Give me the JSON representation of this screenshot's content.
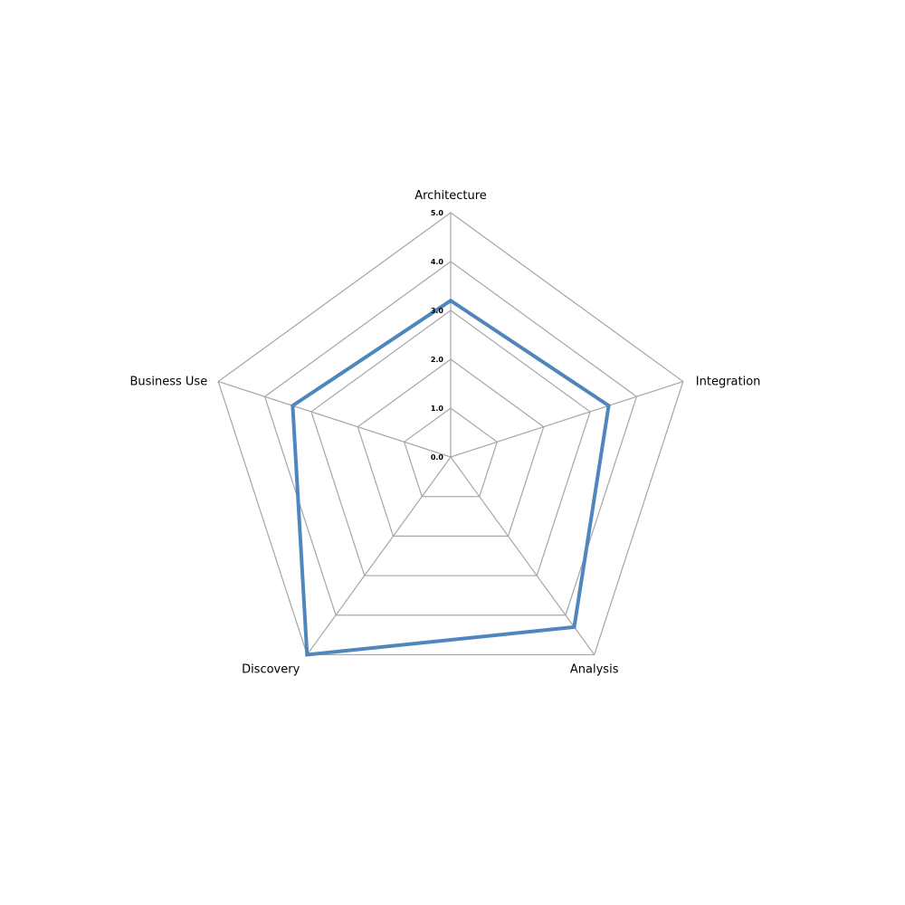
{
  "chart_data": {
    "type": "radar",
    "categories": [
      "Architecture",
      "Integration",
      "Analysis",
      "Discovery",
      "Business Use"
    ],
    "series": [
      {
        "values": [
          3.2,
          3.4,
          4.3,
          5.0,
          3.4
        ],
        "color": "#4f86bb"
      }
    ],
    "rlim": [
      0,
      5
    ],
    "ticks": [
      "0.0",
      "1.0",
      "2.0",
      "3.0",
      "4.0",
      "5.0"
    ],
    "tick_values": [
      0,
      1,
      2,
      3,
      4,
      5
    ],
    "grid": true,
    "legend": false,
    "grid_color": "#a6a6a6"
  }
}
